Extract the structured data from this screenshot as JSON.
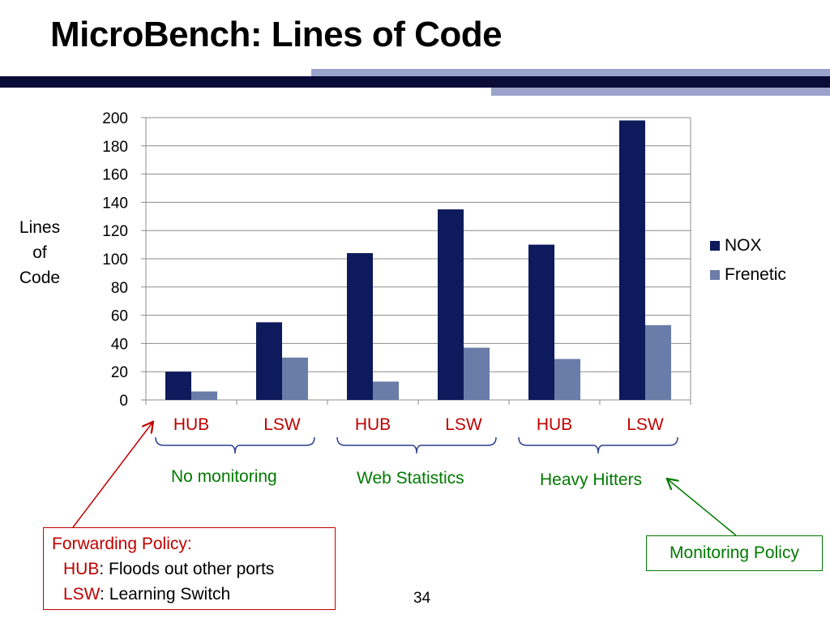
{
  "slide": {
    "title": "MicroBench:  Lines of Code",
    "page_number": "34"
  },
  "colors": {
    "nox": "#0d1a5c",
    "frenetic": "#6a7ca8",
    "tick_red": "#c00000",
    "group_green": "#007a00"
  },
  "chart_data": {
    "type": "bar",
    "categories": [
      "HUB",
      "LSW",
      "HUB",
      "LSW",
      "HUB",
      "LSW"
    ],
    "series": [
      {
        "name": "NOX",
        "values": [
          20,
          55,
          104,
          135,
          110,
          198
        ]
      },
      {
        "name": "Frenetic",
        "values": [
          6,
          30,
          13,
          37,
          29,
          53
        ]
      }
    ],
    "groups": [
      "No monitoring",
      "Web Statistics",
      "Heavy Hitters"
    ],
    "ylabel": [
      "Lines",
      "of",
      "Code"
    ],
    "ylim": [
      0,
      200
    ],
    "yticks": [
      0,
      20,
      40,
      60,
      80,
      100,
      120,
      140,
      160,
      180,
      200
    ],
    "grid": true,
    "legend": "right"
  },
  "annotations": {
    "forwarding": {
      "heading": "Forwarding Policy:",
      "hub_key": "HUB",
      "hub_desc": ":  Floods out other ports",
      "lsw_key": "LSW",
      "lsw_desc": ":  Learning Switch"
    },
    "monitoring": "Monitoring Policy"
  }
}
